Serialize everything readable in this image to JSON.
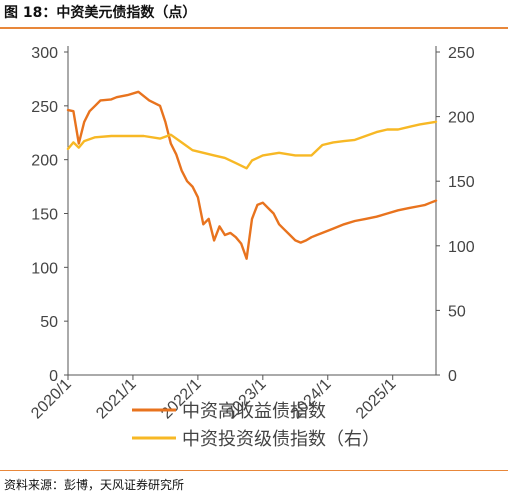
{
  "figure": {
    "title": "图 18：中资美元债指数（点）",
    "source": "资料来源：彭博，天风证券研究所"
  },
  "chart_data": {
    "type": "line",
    "x_ticks": [
      "2020/1",
      "2021/1",
      "2022/1",
      "2023/1",
      "2024/1",
      "2025/1"
    ],
    "x_range": [
      "2020/1",
      "2025/9"
    ],
    "y_left": {
      "ticks": [
        0,
        50,
        100,
        150,
        200,
        250,
        300
      ],
      "lim": [
        0,
        300
      ]
    },
    "y_right": {
      "ticks": [
        0,
        50,
        100,
        150,
        200,
        250
      ],
      "lim": [
        0,
        250
      ]
    },
    "grid": false,
    "legend_position": "bottom-center",
    "series": [
      {
        "name": "中资高收益债指数",
        "axis": "left",
        "color": "#E8731E",
        "x": [
          "2020/1",
          "2020/2",
          "2020/3",
          "2020/4",
          "2020/5",
          "2020/6",
          "2020/7",
          "2020/9",
          "2020/10",
          "2020/12",
          "2021/2",
          "2021/4",
          "2021/6",
          "2021/7",
          "2021/8",
          "2021/9",
          "2021/10",
          "2021/11",
          "2021/12",
          "2022/1",
          "2022/2",
          "2022/3",
          "2022/4",
          "2022/5",
          "2022/6",
          "2022/7",
          "2022/8",
          "2022/9",
          "2022/10",
          "2022/11",
          "2022/12",
          "2023/1",
          "2023/2",
          "2023/3",
          "2023/4",
          "2023/5",
          "2023/6",
          "2023/7",
          "2023/8",
          "2023/9",
          "2023/10",
          "2023/11",
          "2023/12",
          "2024/2",
          "2024/4",
          "2024/6",
          "2024/8",
          "2024/10",
          "2024/12",
          "2025/2",
          "2025/4",
          "2025/6",
          "2025/7",
          "2025/8",
          "2025/9"
        ],
        "values": [
          246,
          245,
          215,
          235,
          245,
          250,
          255,
          256,
          258,
          260,
          263,
          255,
          250,
          235,
          215,
          205,
          190,
          180,
          175,
          165,
          140,
          145,
          125,
          138,
          130,
          132,
          128,
          122,
          108,
          145,
          158,
          160,
          155,
          150,
          140,
          135,
          130,
          125,
          123,
          125,
          128,
          130,
          132,
          136,
          140,
          143,
          145,
          147,
          150,
          153,
          155,
          157,
          158,
          160,
          162
        ]
      },
      {
        "name": "中资投资级债指数（右）",
        "axis": "right",
        "color": "#F7B825",
        "x": [
          "2020/1",
          "2020/2",
          "2020/3",
          "2020/4",
          "2020/6",
          "2020/9",
          "2020/12",
          "2021/3",
          "2021/6",
          "2021/8",
          "2021/10",
          "2021/12",
          "2022/2",
          "2022/4",
          "2022/6",
          "2022/8",
          "2022/10",
          "2022/11",
          "2023/1",
          "2023/4",
          "2023/7",
          "2023/10",
          "2023/12",
          "2024/2",
          "2024/4",
          "2024/6",
          "2024/8",
          "2024/10",
          "2024/12",
          "2025/2",
          "2025/4",
          "2025/6",
          "2025/9"
        ],
        "values": [
          175,
          180,
          176,
          181,
          184,
          185,
          185,
          185,
          183,
          186,
          180,
          174,
          172,
          170,
          168,
          164,
          160,
          166,
          170,
          172,
          170,
          170,
          178,
          180,
          181,
          182,
          185,
          188,
          190,
          190,
          192,
          194,
          196
        ]
      }
    ]
  }
}
